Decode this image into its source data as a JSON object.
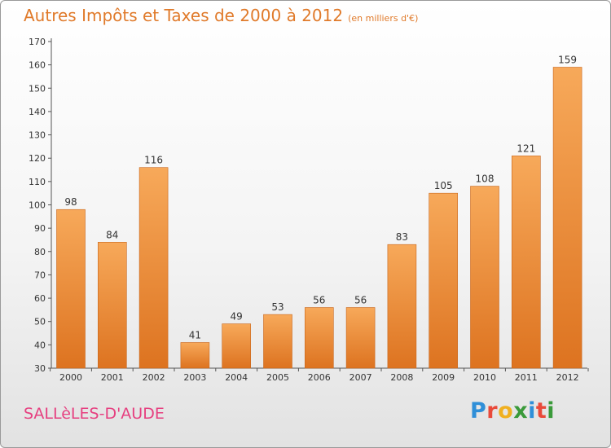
{
  "chart_data": {
    "type": "bar",
    "title": "Autres Impôts et Taxes de 2000 à 2012",
    "subtitle": "(en milliers d'€)",
    "categories": [
      "2000",
      "2001",
      "2002",
      "2003",
      "2004",
      "2005",
      "2006",
      "2007",
      "2008",
      "2009",
      "2010",
      "2011",
      "2012"
    ],
    "values": [
      98,
      84,
      116,
      41,
      49,
      53,
      56,
      56,
      83,
      105,
      108,
      121,
      159
    ],
    "ylim": [
      30,
      170
    ],
    "yticks": [
      30,
      40,
      50,
      60,
      70,
      80,
      90,
      100,
      110,
      120,
      130,
      140,
      150,
      160,
      170
    ],
    "grid": false,
    "bar_color": "#f0923a"
  },
  "footer": {
    "commune": "SALLèLES-D'AUDE",
    "logo_letters": [
      "P",
      "r",
      "o",
      "x",
      "i",
      "t",
      "i"
    ],
    "logo_colors": [
      "#2f8fd8",
      "#e94a3a",
      "#f0b020",
      "#3a9a3a",
      "#2f8fd8",
      "#e94a3a",
      "#3a9a3a"
    ]
  }
}
